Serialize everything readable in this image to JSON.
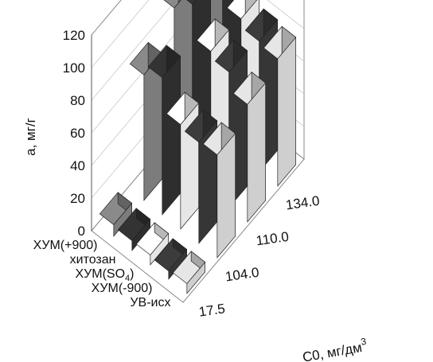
{
  "chart_data": {
    "type": "bar3d",
    "ylabel": "a, мг/г",
    "xlabel": "C0, мг/дм3",
    "xlabel_main": "C0, мг/дм",
    "xlabel_sup": "3",
    "ylim": [
      0,
      120
    ],
    "yticks": [
      0,
      20,
      40,
      60,
      80,
      100,
      120
    ],
    "x_categories": [
      "17.5",
      "104.0",
      "110.0",
      "134.0"
    ],
    "series": [
      {
        "name": "ХУМ(+900)",
        "values": [
          7,
          77,
          96,
          103
        ]
      },
      {
        "name": "хитозан",
        "values": [
          6,
          84,
          107,
          91
        ]
      },
      {
        "name": "ХУМ(SO4)",
        "values": [
          6,
          64,
          87,
          85
        ]
      },
      {
        "name": "ХУМ(-900)",
        "values": [
          5,
          62,
          83,
          80
        ]
      },
      {
        "name": "УВ-исх",
        "values": [
          6,
          63,
          72,
          78
        ]
      }
    ],
    "series_labels": [
      {
        "main": "ХУМ(+900)",
        "sub": ""
      },
      {
        "main": "хитозан",
        "sub": ""
      },
      {
        "main": "ХУМ(SO",
        "sub": "4",
        "tail": ")"
      },
      {
        "main": "ХУМ(-900)",
        "sub": ""
      },
      {
        "main": "УВ-исх",
        "sub": ""
      }
    ],
    "colors": [
      "#8a8a8a",
      "#333333",
      "#ffffff",
      "#3c3c3c",
      "#e6e6e6"
    ],
    "grid": true
  }
}
